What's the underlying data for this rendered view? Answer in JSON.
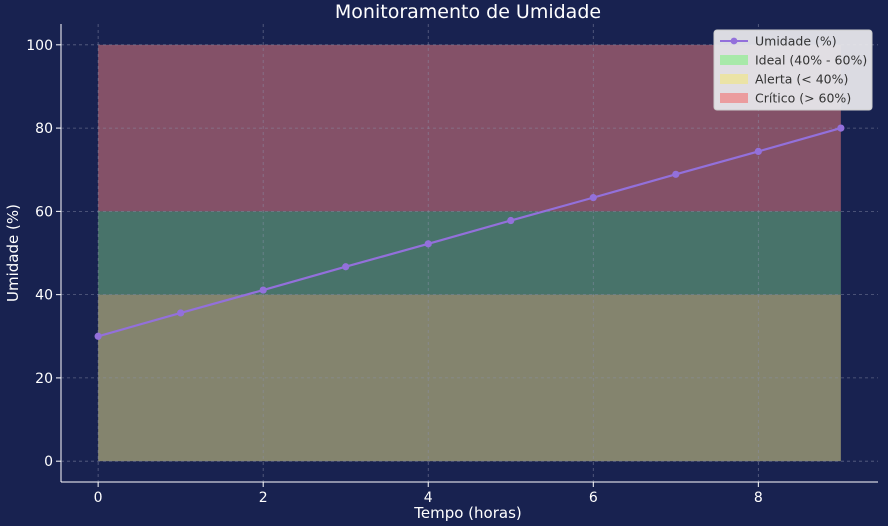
{
  "chart_data": {
    "type": "line",
    "title": "Monitoramento de Umidade",
    "xlabel": "Tempo (horas)",
    "ylabel": "Umidade (%)",
    "xlim": [
      -0.45,
      9.45
    ],
    "ylim": [
      -5,
      105
    ],
    "xticks": [
      0,
      2,
      4,
      6,
      8
    ],
    "yticks": [
      0,
      20,
      40,
      60,
      80,
      100
    ],
    "grid": true,
    "legend_position": "top-right",
    "series": [
      {
        "name": "Umidade (%)",
        "color": "#9370db",
        "x": [
          0,
          1,
          2,
          3,
          4,
          5,
          6,
          7,
          8,
          9
        ],
        "y": [
          30,
          35.6,
          41.1,
          46.7,
          52.2,
          57.8,
          63.3,
          68.9,
          74.4,
          80
        ]
      }
    ],
    "bands": [
      {
        "name": "Ideal (40% - 60%)",
        "ymin": 40,
        "ymax": 60,
        "color": "#90ee90",
        "opacity": 0.4
      },
      {
        "name": "Alerta (< 40%)",
        "ymin": 0,
        "ymax": 40,
        "color": "#f0e68c",
        "opacity": 0.5
      },
      {
        "name": "Crítico (> 60%)",
        "ymin": 60,
        "ymax": 100,
        "color": "#f08080",
        "opacity": 0.5
      }
    ],
    "band_x_range": [
      0,
      9
    ]
  },
  "colors": {
    "background": "#182250",
    "grid": "#8a90a8",
    "axis": "#ffffff"
  }
}
